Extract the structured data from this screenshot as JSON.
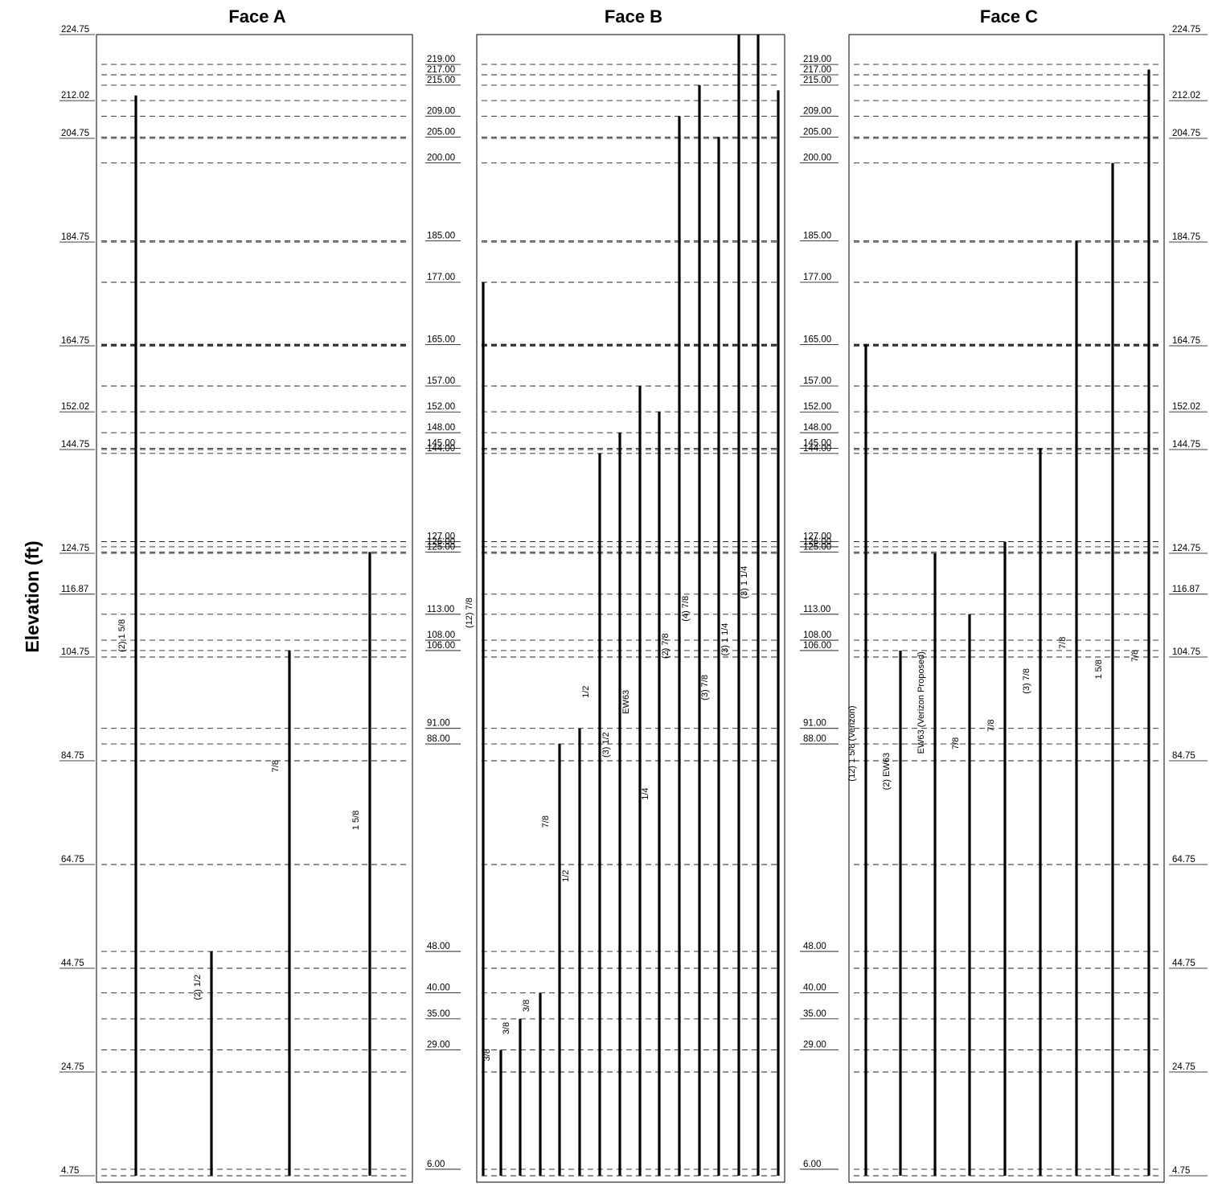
{
  "y_axis_label": "Elevation (ft)",
  "faces": [
    {
      "title": "Face A",
      "left_elevations": [
        "224.75",
        "212.02",
        "204.75",
        "184.75",
        "164.75",
        "152.02",
        "144.75",
        "124.75",
        "116.87",
        "104.75",
        "84.75",
        "64.75",
        "44.75",
        "24.75",
        "4.75"
      ],
      "right_elevations": [],
      "dashed_levels": [
        219,
        217,
        215,
        212.02,
        209,
        205,
        204.75,
        200,
        185,
        184.75,
        177,
        165,
        164.75,
        157,
        152.02,
        148,
        145,
        144.75,
        144,
        127,
        126,
        125,
        124.75,
        116.87,
        113,
        108,
        106,
        104.75,
        91,
        88,
        84.75,
        64.75,
        48,
        44.75,
        40,
        35,
        29,
        24.75,
        6,
        4.75
      ],
      "runs": [
        {
          "label": "(2) 1 5/8",
          "top": 213
        },
        {
          "label": "(2) 1/2",
          "top": 48
        },
        {
          "label": "7/8",
          "top": 106
        },
        {
          "label": "1 5/8",
          "top": 125
        }
      ]
    },
    {
      "title": "Face B",
      "left_elevations": [
        "219.00",
        "217.00",
        "215.00",
        "209.00",
        "205.00",
        "200.00",
        "185.00",
        "177.00",
        "165.00",
        "157.00",
        "152.00",
        "148.00",
        "145.00",
        "144.00",
        "127.00",
        "126.00",
        "125.00",
        "113.00",
        "108.00",
        "106.00",
        "91.00",
        "88.00",
        "48.00",
        "40.00",
        "35.00",
        "29.00",
        "6.00"
      ],
      "right_elevations": [
        "219.00",
        "217.00",
        "215.00",
        "209.00",
        "205.00",
        "200.00",
        "185.00",
        "177.00",
        "165.00",
        "157.00",
        "152.00",
        "148.00",
        "145.00",
        "144.00",
        "127.00",
        "126.00",
        "125.00",
        "113.00",
        "108.00",
        "106.00",
        "91.00",
        "88.00",
        "48.00",
        "40.00",
        "35.00",
        "29.00",
        "6.00"
      ],
      "dashed_levels": [
        219,
        217,
        215,
        212.02,
        209,
        205,
        204.75,
        200,
        185,
        184.75,
        177,
        165,
        164.75,
        157,
        152.02,
        148,
        145,
        144.75,
        144,
        127,
        126,
        125,
        124.75,
        116.87,
        113,
        108,
        106,
        104.75,
        91,
        88,
        84.75,
        64.75,
        48,
        44.75,
        40,
        35,
        29,
        24.75,
        6,
        4.75
      ],
      "runs": [
        {
          "label": "(12) 7/8",
          "top": 177
        },
        {
          "label": "3/8",
          "top": 29
        },
        {
          "label": "3/8",
          "top": 35
        },
        {
          "label": "3/8",
          "top": 40
        },
        {
          "label": "7/8",
          "top": 88
        },
        {
          "label": "1/2",
          "top": 91
        },
        {
          "label": "1/2",
          "top": 144
        },
        {
          "label": "(3) 1/2",
          "top": 148
        },
        {
          "label": "EW63",
          "top": 157
        },
        {
          "label": "1/4",
          "top": 152
        },
        {
          "label": "(2) 7/8",
          "top": 209
        },
        {
          "label": "(4) 7/8",
          "top": 215
        },
        {
          "label": "(3) 7/8",
          "top": 205
        },
        {
          "label": "(3) 1 1/4",
          "top": 224.75
        },
        {
          "label": "(3) 1 1/4",
          "top": 224.75
        },
        {
          "label": "",
          "top": 214
        }
      ]
    },
    {
      "title": "Face C",
      "left_elevations": [],
      "right_elevations": [
        "224.75",
        "212.02",
        "204.75",
        "184.75",
        "164.75",
        "152.02",
        "144.75",
        "124.75",
        "116.87",
        "104.75",
        "84.75",
        "64.75",
        "44.75",
        "24.75",
        "4.75"
      ],
      "dashed_levels": [
        219,
        217,
        215,
        212.02,
        209,
        205,
        204.75,
        200,
        185,
        184.75,
        177,
        165,
        164.75,
        157,
        152.02,
        148,
        145,
        144.75,
        144,
        127,
        126,
        125,
        124.75,
        116.87,
        113,
        108,
        106,
        104.75,
        91,
        88,
        84.75,
        64.75,
        48,
        44.75,
        40,
        35,
        29,
        24.75,
        6,
        4.75
      ],
      "runs": [
        {
          "label": "(12) 1 5/8 (Verizon)",
          "top": 165
        },
        {
          "label": "(2) EW63",
          "top": 106
        },
        {
          "label": "EW63 (Verizon Proposed)",
          "top": 124.75
        },
        {
          "label": "7/8",
          "top": 113
        },
        {
          "label": "7/8",
          "top": 127
        },
        {
          "label": "(3) 7/8",
          "top": 145
        },
        {
          "label": "7/8",
          "top": 185
        },
        {
          "label": "1 5/8",
          "top": 200
        },
        {
          "label": "7/8",
          "top": 218
        }
      ]
    }
  ]
}
